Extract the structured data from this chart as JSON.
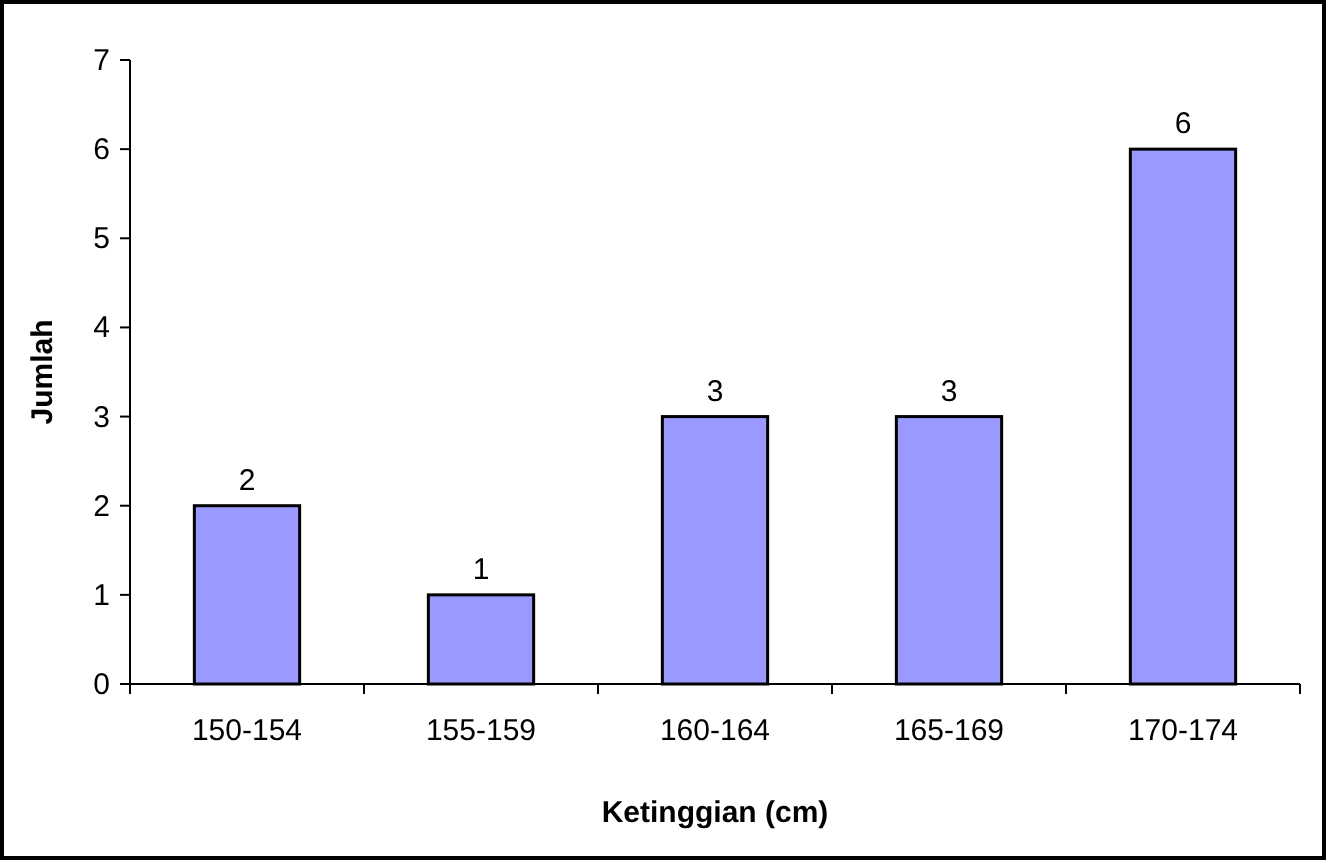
{
  "chart_data": {
    "type": "bar",
    "xlabel": "Ketinggian (cm)",
    "ylabel": "Jumlah",
    "categories": [
      "150-154",
      "155-159",
      "160-164",
      "165-169",
      "170-174"
    ],
    "values": [
      2,
      1,
      3,
      3,
      6
    ],
    "color": "#9999ff",
    "ylim": [
      0,
      7
    ],
    "yticks": [
      0,
      1,
      2,
      3,
      4,
      5,
      6,
      7
    ],
    "data_labels": true,
    "grid": false
  }
}
